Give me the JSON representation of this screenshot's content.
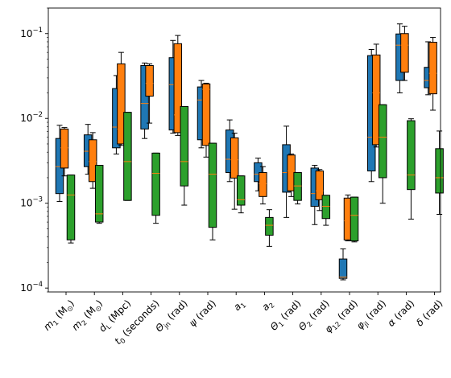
{
  "chart_data": {
    "type": "box",
    "yscale": "log",
    "ylim": [
      9e-05,
      0.2
    ],
    "yticks": [
      {
        "value": 0.0001,
        "base": "10",
        "exp": "−4"
      },
      {
        "value": 0.001,
        "base": "10",
        "exp": "−3"
      },
      {
        "value": 0.01,
        "base": "10",
        "exp": "−2"
      },
      {
        "value": 0.1,
        "base": "10",
        "exp": "−1"
      }
    ],
    "categories": [
      {
        "main": "m",
        "sub": "1",
        "rest": " (M",
        "sub2": "⊙",
        "end": ")"
      },
      {
        "main": "m",
        "sub": "2",
        "rest": " (M",
        "sub2": "⊙",
        "end": ")"
      },
      {
        "main": "d",
        "sub": "L",
        "rest": " (Mpc)",
        "sub2": "",
        "end": ""
      },
      {
        "main": "t",
        "sub": "0",
        "rest": " (seconds)",
        "sub2": "",
        "end": ""
      },
      {
        "main": "Θ",
        "sub": "jn",
        "rest": " (rad)",
        "sub2": "",
        "end": ""
      },
      {
        "main": "ψ",
        "sub": "",
        "rest": " (rad)",
        "sub2": "",
        "end": ""
      },
      {
        "main": "a",
        "sub": "1",
        "rest": "",
        "sub2": "",
        "end": ""
      },
      {
        "main": "a",
        "sub": "2",
        "rest": "",
        "sub2": "",
        "end": ""
      },
      {
        "main": "Θ",
        "sub": "1",
        "rest": " (rad)",
        "sub2": "",
        "end": ""
      },
      {
        "main": "Θ",
        "sub": "2",
        "rest": " (rad)",
        "sub2": "",
        "end": ""
      },
      {
        "main": "φ",
        "sub": "12",
        "rest": " (rad)",
        "sub2": "",
        "end": ""
      },
      {
        "main": "φ",
        "sub": "jl",
        "rest": " (rad)",
        "sub2": "",
        "end": ""
      },
      {
        "main": "α",
        "sub": "",
        "rest": " (rad)",
        "sub2": "",
        "end": ""
      },
      {
        "main": "δ",
        "sub": "",
        "rest": " (rad)",
        "sub2": "",
        "end": ""
      }
    ],
    "series": [
      {
        "color": "#1f77b4",
        "boxes": [
          {
            "whislo": 0.00105,
            "q1": 0.0013,
            "med": 0.0027,
            "q3": 0.0058,
            "whishi": 0.0083
          },
          {
            "whislo": 0.0022,
            "q1": 0.0027,
            "med": 0.0041,
            "q3": 0.0064,
            "whishi": 0.0085
          },
          {
            "whislo": 0.0038,
            "q1": 0.0045,
            "med": 0.0079,
            "q3": 0.0225,
            "whishi": 0.032
          },
          {
            "whislo": 0.0058,
            "q1": 0.0075,
            "med": 0.015,
            "q3": 0.042,
            "whishi": 0.045
          },
          {
            "whislo": 0.0067,
            "q1": 0.0073,
            "med": 0.025,
            "q3": 0.052,
            "whishi": 0.083
          },
          {
            "whislo": 0.0045,
            "q1": 0.0056,
            "med": 0.0165,
            "q3": 0.0235,
            "whishi": 0.028
          },
          {
            "whislo": 0.0018,
            "q1": 0.0023,
            "med": 0.0033,
            "q3": 0.0073,
            "whishi": 0.0096
          },
          {
            "whislo": 0.0014,
            "q1": 0.0018,
            "med": 0.0022,
            "q3": 0.003,
            "whishi": 0.0034
          },
          {
            "whislo": 0.00068,
            "q1": 0.00135,
            "med": 0.0023,
            "q3": 0.0049,
            "whishi": 0.0081
          },
          {
            "whislo": 0.00056,
            "q1": 0.00092,
            "med": 0.0013,
            "q3": 0.0026,
            "whishi": 0.0028
          },
          {
            "whislo": 0.000125,
            "q1": 0.00013,
            "med": 0.000135,
            "q3": 0.00022,
            "whishi": 0.00029
          },
          {
            "whislo": 0.0018,
            "q1": 0.0024,
            "med": 0.006,
            "q3": 0.055,
            "whishi": 0.065
          },
          {
            "whislo": 0.02,
            "q1": 0.028,
            "med": 0.073,
            "q3": 0.099,
            "whishi": 0.13
          },
          {
            "whislo": 0.019,
            "q1": 0.023,
            "med": 0.028,
            "q3": 0.04,
            "whishi": 0.08
          }
        ]
      },
      {
        "color": "#ff7f0e",
        "boxes": [
          {
            "whislo": 0.0021,
            "q1": 0.0026,
            "med": 0.0045,
            "q3": 0.0075,
            "whishi": 0.0078
          },
          {
            "whislo": 0.0015,
            "q1": 0.0018,
            "med": 0.0031,
            "q3": 0.0056,
            "whishi": 0.0068
          },
          {
            "whislo": 0.0048,
            "q1": 0.005,
            "med": 0.0075,
            "q3": 0.044,
            "whishi": 0.06
          },
          {
            "whislo": 0.0088,
            "q1": 0.0183,
            "med": 0.0259,
            "q3": 0.042,
            "whishi": 0.044
          },
          {
            "whislo": 0.0063,
            "q1": 0.0068,
            "med": 0.011,
            "q3": 0.076,
            "whishi": 0.095
          },
          {
            "whislo": 0.0035,
            "q1": 0.0048,
            "med": 0.022,
            "q3": 0.0255,
            "whishi": 0.026
          },
          {
            "whislo": 0.00085,
            "q1": 0.00198,
            "med": 0.00325,
            "q3": 0.0059,
            "whishi": 0.0067
          },
          {
            "whislo": 0.00098,
            "q1": 0.0012,
            "med": 0.0017,
            "q3": 0.0023,
            "whishi": 0.0027
          },
          {
            "whislo": 0.0012,
            "q1": 0.0014,
            "med": 0.0024,
            "q3": 0.0037,
            "whishi": 0.0038
          },
          {
            "whislo": 0.00082,
            "q1": 0.0011,
            "med": 0.0014,
            "q3": 0.0024,
            "whishi": 0.0025
          },
          {
            "whislo": 0.00036,
            "q1": 0.00037,
            "med": 0.00062,
            "q3": 0.00115,
            "whishi": 0.00125
          },
          {
            "whislo": 0.0046,
            "q1": 0.0049,
            "med": 0.02,
            "q3": 0.056,
            "whishi": 0.075
          },
          {
            "whislo": 0.028,
            "q1": 0.035,
            "med": 0.073,
            "q3": 0.1,
            "whishi": 0.122
          },
          {
            "whislo": 0.0125,
            "q1": 0.0195,
            "med": 0.034,
            "q3": 0.079,
            "whishi": 0.09
          }
        ]
      },
      {
        "color": "#2ca02c",
        "boxes": [
          {
            "whislo": 0.00034,
            "q1": 0.00037,
            "med": 0.00125,
            "q3": 0.00215,
            "whishi": 0.00215
          },
          {
            "whislo": 0.00058,
            "q1": 0.0006,
            "med": 0.00075,
            "q3": 0.0028,
            "whishi": 0.0028
          },
          {
            "whislo": 0.00108,
            "q1": 0.00108,
            "med": 0.0031,
            "q3": 0.0118,
            "whishi": 0.0118
          },
          {
            "whislo": 0.00058,
            "q1": 0.00072,
            "med": 0.00225,
            "q3": 0.0039,
            "whishi": 0.0039
          },
          {
            "whislo": 0.00095,
            "q1": 0.0016,
            "med": 0.0031,
            "q3": 0.0138,
            "whishi": 0.0138
          },
          {
            "whislo": 0.00037,
            "q1": 0.00052,
            "med": 0.0022,
            "q3": 0.0051,
            "whishi": 0.0051
          },
          {
            "whislo": 0.00077,
            "q1": 0.00095,
            "med": 0.0011,
            "q3": 0.0021,
            "whishi": 0.0021
          },
          {
            "whislo": 0.00031,
            "q1": 0.00042,
            "med": 0.00055,
            "q3": 0.00068,
            "whishi": 0.00084
          },
          {
            "whislo": 0.00098,
            "q1": 0.00108,
            "med": 0.0016,
            "q3": 0.0023,
            "whishi": 0.0023
          },
          {
            "whislo": 0.00055,
            "q1": 0.00066,
            "med": 0.00092,
            "q3": 0.00124,
            "whishi": 0.00124
          },
          {
            "whislo": 0.00035,
            "q1": 0.00036,
            "med": 0.00072,
            "q3": 0.00118,
            "whishi": 0.00118
          },
          {
            "whislo": 0.001,
            "q1": 0.002,
            "med": 0.006,
            "q3": 0.0145,
            "whishi": 0.0145
          },
          {
            "whislo": 0.00065,
            "q1": 0.00145,
            "med": 0.00215,
            "q3": 0.0094,
            "whishi": 0.0099
          },
          {
            "whislo": 0.00074,
            "q1": 0.00132,
            "med": 0.002,
            "q3": 0.0044,
            "whishi": 0.0071
          }
        ]
      }
    ]
  }
}
